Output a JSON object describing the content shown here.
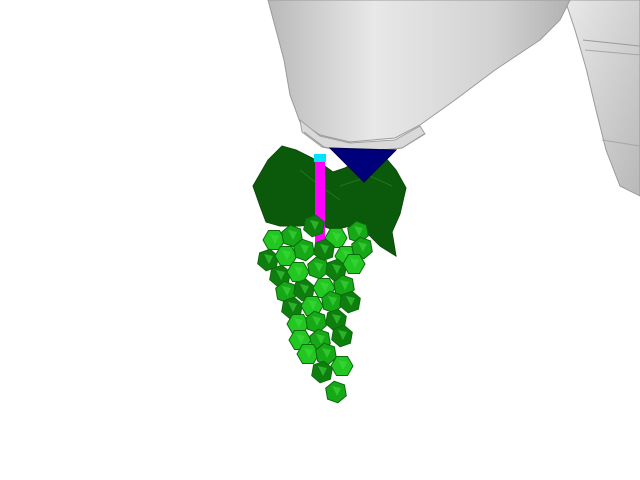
{
  "scene": {
    "description_free": true,
    "objects": {
      "robot_arm": {
        "name": "robot-arm"
      },
      "gripper_tip": {
        "name": "gripper-tip"
      },
      "cutting_tool": {
        "name": "cutting-tool"
      },
      "grape_leaf": {
        "name": "grape-leaf"
      },
      "grape_bunch": {
        "name": "grape-bunch"
      }
    }
  },
  "colors": {
    "background": "#ffffff",
    "arm_light": "#e6e6e6",
    "arm_mid": "#cfcfcf",
    "arm_dark": "#a9a9a9",
    "gripper_navy": "#00007a",
    "tool_magenta": "#ff00ff",
    "tool_cyan": "#00e5ff",
    "leaf_dark": "#0b5a0b",
    "leaf_light": "#146b14",
    "grape_bright": "#22c722",
    "grape_mid": "#16a816",
    "grape_dark": "#0e7f0e"
  }
}
